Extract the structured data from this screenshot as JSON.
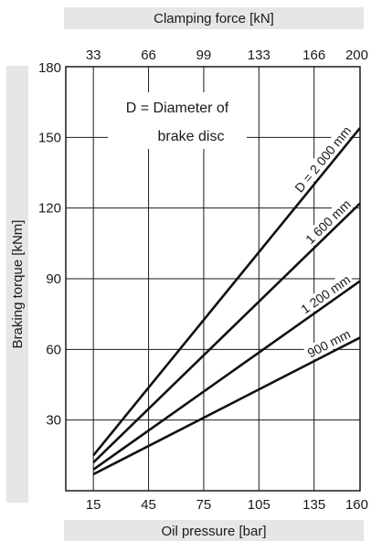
{
  "chart_data": {
    "type": "line",
    "title": "",
    "note_line1": "D = Diameter of",
    "note_line2": "brake disc",
    "xlabel": "Oil pressure [bar]",
    "x2label": "Clamping force [kN]",
    "ylabel": "Braking torque [kNm]",
    "xlim": [
      0,
      160
    ],
    "ylim": [
      0,
      180
    ],
    "xticks": [
      15,
      45,
      75,
      105,
      135,
      160
    ],
    "x2ticks": [
      "33",
      "66",
      "99",
      "133",
      "166",
      "200"
    ],
    "yticks": [
      30,
      60,
      90,
      120,
      150,
      180
    ],
    "grid": true,
    "series": [
      {
        "name": "900 mm",
        "label": "900 mm",
        "x": [
          15,
          160
        ],
        "y": [
          7,
          65
        ]
      },
      {
        "name": "1 200 mm",
        "label": "1 200 mm",
        "x": [
          15,
          160
        ],
        "y": [
          9,
          89
        ]
      },
      {
        "name": "1 600 mm",
        "label": "1 600 mm",
        "x": [
          15,
          160
        ],
        "y": [
          12,
          122
        ]
      },
      {
        "name": "D = 2 000 mm",
        "label": "D = 2 000 mm",
        "x": [
          15,
          160
        ],
        "y": [
          15,
          154
        ]
      }
    ],
    "colors": {
      "line": "#111111",
      "band": "#e6e6e6",
      "grid": "#1a1a1a"
    }
  }
}
